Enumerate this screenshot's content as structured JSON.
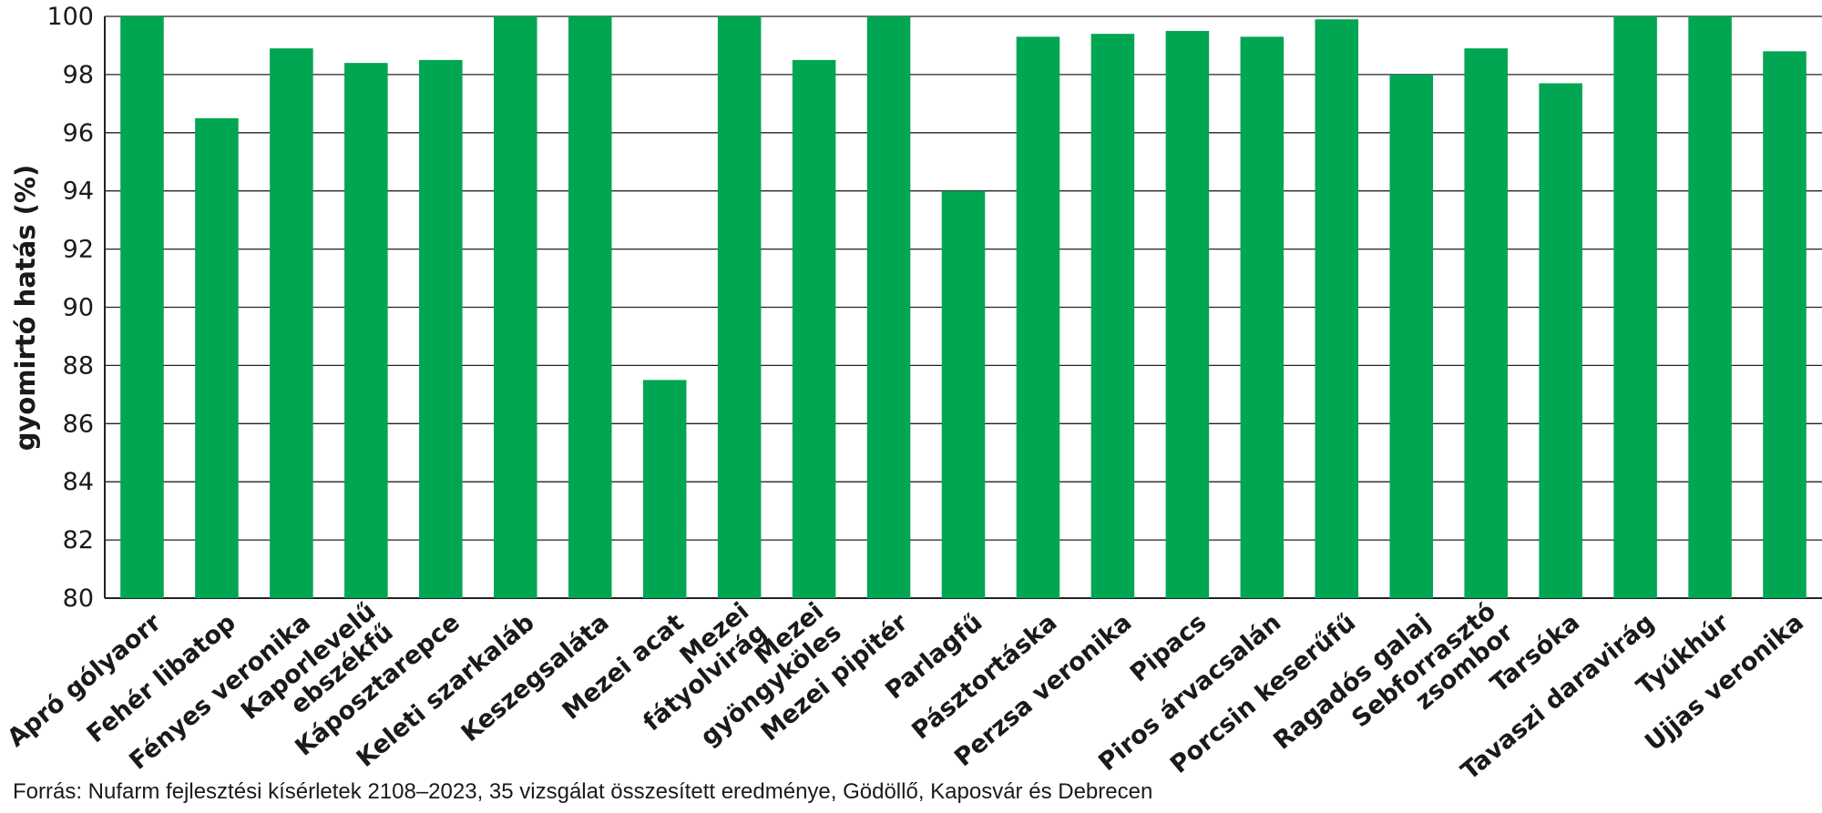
{
  "chart_data": {
    "type": "bar",
    "ylabel": "gyomirtó hatás (%)",
    "ylim": [
      80,
      100
    ],
    "yticks": [
      80,
      82,
      84,
      86,
      88,
      90,
      92,
      94,
      96,
      98,
      100
    ],
    "grid": true,
    "bar_color": "#00a651",
    "categories": [
      "Apró gólyaorr",
      "Fehér libatop",
      "Fényes veronika",
      "Kaporlevelű ebszékfű",
      "Káposztarepce",
      "Keleti szarkaláb",
      "Keszegsaláta",
      "Mezei acat",
      "Mezei fátyolvirág",
      "Mezei gyöngyköles",
      "Mezei pipitér",
      "Parlagfű",
      "Pásztortáska",
      "Perzsa veronika",
      "Pipacs",
      "Piros árvacsalán",
      "Porcsin keserűfű",
      "Ragadós galaj",
      "Sebforrasztó zsombor",
      "Tarsóka",
      "Tavaszi daravirág",
      "Tyúkhúr",
      "Ujjas veronika"
    ],
    "label_lines": [
      [
        "Apró gólyaorr"
      ],
      [
        "Fehér libatop"
      ],
      [
        "Fényes veronika"
      ],
      [
        "Kaporlevelű",
        "ebszékfű"
      ],
      [
        "Káposztarepce"
      ],
      [
        "Keleti szarkaláb"
      ],
      [
        "Keszegsaláta"
      ],
      [
        "Mezei acat"
      ],
      [
        "Mezei",
        "fátyolvirág"
      ],
      [
        "Mezei",
        "gyöngyköles"
      ],
      [
        "Mezei pipitér"
      ],
      [
        "Parlagfű"
      ],
      [
        "Pásztortáska"
      ],
      [
        "Perzsa veronika"
      ],
      [
        "Pipacs"
      ],
      [
        "Piros árvacsalán"
      ],
      [
        "Porcsin keserűfű"
      ],
      [
        "Ragadós galaj"
      ],
      [
        "Sebforrasztó",
        "zsombor"
      ],
      [
        "Tarsóka"
      ],
      [
        "Tavaszi daravirág"
      ],
      [
        "Tyúkhúr"
      ],
      [
        "Ujjas veronika"
      ]
    ],
    "values": [
      100,
      96.5,
      98.9,
      98.4,
      98.5,
      100,
      100,
      87.5,
      100,
      98.5,
      100,
      94.0,
      99.3,
      99.4,
      99.5,
      99.3,
      99.9,
      98.0,
      98.9,
      97.7,
      100,
      100,
      98.8
    ]
  },
  "footer": {
    "source": "Forrás: Nufarm fejlesztési kísérletek 2108–2023, 35 vizsgálat összesített eredménye, Gödöllő, Kaposvár és Debrecen"
  }
}
